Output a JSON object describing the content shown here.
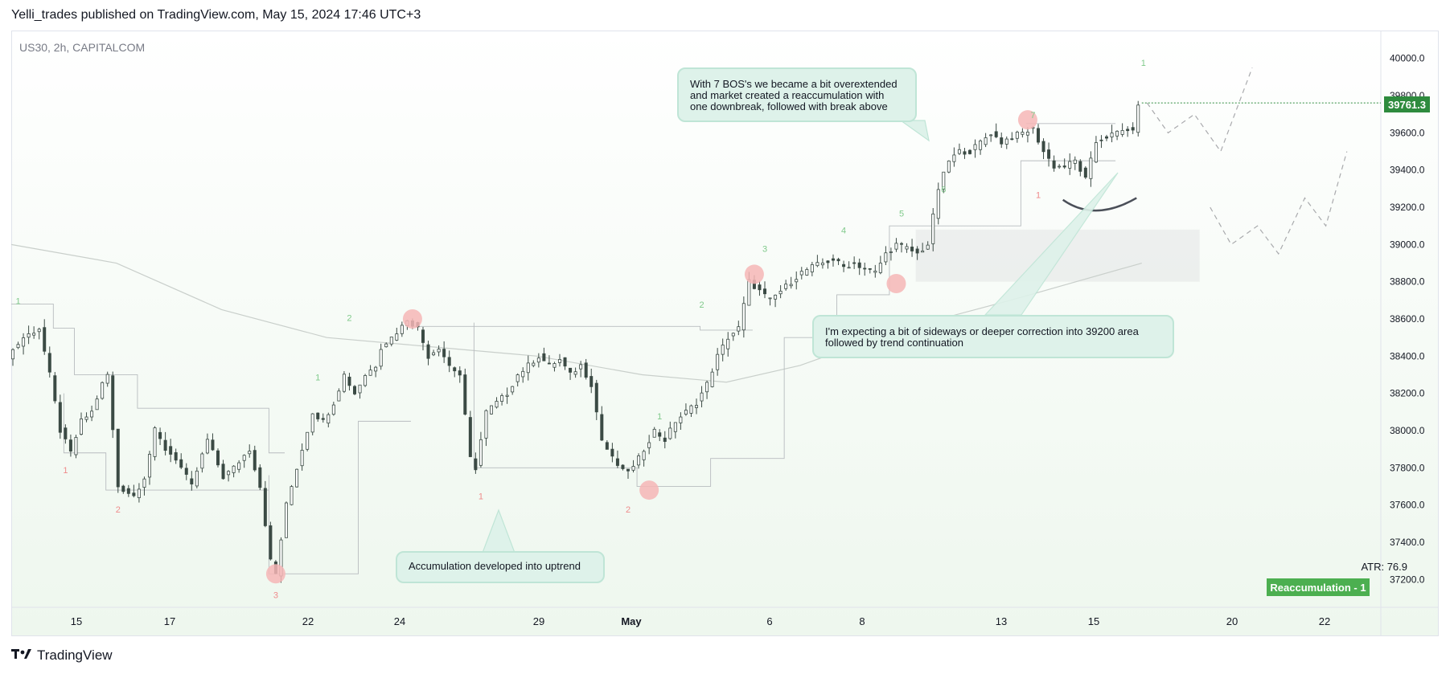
{
  "header": {
    "publisher_line": "Yelli_trades published on TradingView.com, May 15, 2024 17:46 UTC+3"
  },
  "footer": {
    "brand": "TradingView",
    "logo_mark": "17"
  },
  "colors": {
    "up": "#3b4a44",
    "down": "#3b4a44",
    "badge": "#2e8b3e",
    "label_green": "#4caf50",
    "callout_bg": "#def2ea",
    "pivot_circle": "#f6b6b6"
  },
  "chart_data": {
    "type": "candlestick",
    "title": "US30, 2h, CAPITALCOM",
    "symbol": "US30",
    "interval": "2h",
    "exchange": "CAPITALCOM",
    "ylim": [
      37050,
      40150
    ],
    "y_ticks": [
      37200,
      37400,
      37600,
      37800,
      38000,
      38200,
      38400,
      38600,
      38800,
      39000,
      39200,
      39400,
      39600,
      39800,
      40000
    ],
    "y_tick_labels": [
      "37200.0",
      "37400.0",
      "37600.0",
      "37800.0",
      "38000.0",
      "38200.0",
      "38400.0",
      "38600.0",
      "38800.0",
      "39000.0",
      "39200.0",
      "39400.0",
      "39600.0",
      "39800.0",
      "40000.0"
    ],
    "x_ticks": [
      "15",
      "17",
      "22",
      "24",
      "29",
      "May",
      "6",
      "8",
      "13",
      "15",
      "20",
      "22"
    ],
    "last_price": "39761.3",
    "atr_label": "ATR: 76.9",
    "indicator_label": "Reaccumulation - 1",
    "price_path": [
      [
        0,
        38400
      ],
      [
        3,
        38500
      ],
      [
        6,
        38550
      ],
      [
        8,
        38300
      ],
      [
        10,
        38000
      ],
      [
        12,
        37880
      ],
      [
        14,
        38050
      ],
      [
        16,
        38100
      ],
      [
        18,
        38250
      ],
      [
        19,
        38300
      ],
      [
        21,
        37700
      ],
      [
        24,
        37650
      ],
      [
        26,
        37750
      ],
      [
        28,
        38000
      ],
      [
        30,
        37900
      ],
      [
        32,
        37850
      ],
      [
        35,
        37700
      ],
      [
        38,
        37950
      ],
      [
        41,
        37750
      ],
      [
        43,
        37800
      ],
      [
        46,
        37900
      ],
      [
        48,
        37700
      ],
      [
        50,
        37300
      ],
      [
        51,
        37230
      ],
      [
        53,
        37600
      ],
      [
        56,
        37900
      ],
      [
        58,
        38100
      ],
      [
        60,
        38050
      ],
      [
        62,
        38150
      ],
      [
        64,
        38300
      ],
      [
        66,
        38200
      ],
      [
        68,
        38300
      ],
      [
        70,
        38350
      ],
      [
        71,
        38450
      ],
      [
        73,
        38500
      ],
      [
        75,
        38560
      ],
      [
        76,
        38600
      ],
      [
        78,
        38550
      ],
      [
        80,
        38400
      ],
      [
        82,
        38450
      ],
      [
        84,
        38350
      ],
      [
        86,
        38300
      ],
      [
        88,
        37850
      ],
      [
        89,
        37800
      ],
      [
        91,
        38100
      ],
      [
        93,
        38150
      ],
      [
        95,
        38200
      ],
      [
        97,
        38300
      ],
      [
        99,
        38350
      ],
      [
        101,
        38400
      ],
      [
        103,
        38350
      ],
      [
        105,
        38380
      ],
      [
        107,
        38300
      ],
      [
        109,
        38350
      ],
      [
        111,
        38250
      ],
      [
        113,
        37950
      ],
      [
        115,
        37850
      ],
      [
        117,
        37780
      ],
      [
        119,
        37800
      ],
      [
        121,
        37900
      ],
      [
        123,
        38000
      ],
      [
        125,
        37950
      ],
      [
        127,
        38050
      ],
      [
        129,
        38100
      ],
      [
        131,
        38150
      ],
      [
        133,
        38250
      ],
      [
        135,
        38400
      ],
      [
        137,
        38500
      ],
      [
        139,
        38550
      ],
      [
        141,
        38800
      ],
      [
        143,
        38750
      ],
      [
        145,
        38700
      ],
      [
        147,
        38750
      ],
      [
        149,
        38800
      ],
      [
        151,
        38850
      ],
      [
        153,
        38880
      ],
      [
        155,
        38900
      ],
      [
        157,
        38920
      ],
      [
        159,
        38880
      ],
      [
        161,
        38900
      ],
      [
        163,
        38870
      ],
      [
        165,
        38850
      ],
      [
        167,
        38950
      ],
      [
        169,
        39000
      ],
      [
        171,
        38980
      ],
      [
        173,
        38950
      ],
      [
        175,
        39000
      ],
      [
        177,
        39300
      ],
      [
        179,
        39450
      ],
      [
        181,
        39500
      ],
      [
        183,
        39500
      ],
      [
        185,
        39550
      ],
      [
        187,
        39600
      ],
      [
        189,
        39550
      ],
      [
        191,
        39580
      ],
      [
        193,
        39600
      ],
      [
        195,
        39620
      ],
      [
        197,
        39500
      ],
      [
        199,
        39420
      ],
      [
        201,
        39420
      ],
      [
        203,
        39450
      ],
      [
        205,
        39350
      ],
      [
        207,
        39550
      ],
      [
        209,
        39580
      ],
      [
        211,
        39600
      ],
      [
        213,
        39620
      ],
      [
        214,
        39600
      ],
      [
        215,
        39761
      ]
    ],
    "projection_1": [
      [
        216,
        39761
      ],
      [
        220,
        39600
      ],
      [
        225,
        39700
      ],
      [
        230,
        39500
      ],
      [
        236,
        39950
      ]
    ],
    "projection_2": [
      [
        228,
        39200
      ],
      [
        232,
        39000
      ],
      [
        237,
        39100
      ],
      [
        241,
        38950
      ],
      [
        246,
        39250
      ],
      [
        250,
        39100
      ],
      [
        254,
        39500
      ]
    ],
    "zone": {
      "price_top": 39080,
      "price_bottom": 38800,
      "from_index": 172,
      "to_index": 226
    },
    "moving_average": [
      [
        0,
        39000
      ],
      [
        20,
        38900
      ],
      [
        40,
        38650
      ],
      [
        60,
        38500
      ],
      [
        80,
        38450
      ],
      [
        100,
        38400
      ],
      [
        120,
        38300
      ],
      [
        136,
        38260
      ],
      [
        150,
        38350
      ],
      [
        170,
        38550
      ],
      [
        190,
        38700
      ],
      [
        215,
        38900
      ]
    ],
    "swing_labels": [
      {
        "text": "1",
        "idx": 1,
        "price": 38680,
        "color": "green"
      },
      {
        "text": "1",
        "idx": 10,
        "price": 37770,
        "color": "red"
      },
      {
        "text": "2",
        "idx": 20,
        "price": 37560,
        "color": "red"
      },
      {
        "text": "3",
        "idx": 50,
        "price": 37100,
        "color": "red"
      },
      {
        "text": "1",
        "idx": 58,
        "price": 38270,
        "color": "green"
      },
      {
        "text": "2",
        "idx": 64,
        "price": 38590,
        "color": "green"
      },
      {
        "text": "1",
        "idx": 89,
        "price": 37630,
        "color": "red"
      },
      {
        "text": "2",
        "idx": 117,
        "price": 37560,
        "color": "red"
      },
      {
        "text": "1",
        "idx": 123,
        "price": 38060,
        "color": "green"
      },
      {
        "text": "2",
        "idx": 131,
        "price": 38660,
        "color": "green"
      },
      {
        "text": "3",
        "idx": 143,
        "price": 38960,
        "color": "green"
      },
      {
        "text": "4",
        "idx": 158,
        "price": 39060,
        "color": "green"
      },
      {
        "text": "5",
        "idx": 169,
        "price": 39150,
        "color": "green"
      },
      {
        "text": "6",
        "idx": 177,
        "price": 39280,
        "color": "green"
      },
      {
        "text": "7",
        "idx": 194,
        "price": 39680,
        "color": "green"
      },
      {
        "text": "1",
        "idx": 195,
        "price": 39250,
        "color": "red"
      },
      {
        "text": "1",
        "idx": 215,
        "price": 39960,
        "color": "green"
      }
    ],
    "pivot_circles": [
      [
        50,
        37230
      ],
      [
        76,
        38600
      ],
      [
        121,
        37680
      ],
      [
        141,
        38840
      ],
      [
        168,
        38790
      ],
      [
        193,
        39670
      ]
    ],
    "annotations": [
      {
        "text": "With 7 BOS's we became a bit overextended and market created a reaccumulation with one downbreak, followed with break above"
      },
      {
        "text": "I'm expecting a bit of sideways or deeper correction into 39200 area followed by trend continuation"
      },
      {
        "text": "Accumulation developed into uptrend"
      }
    ]
  }
}
